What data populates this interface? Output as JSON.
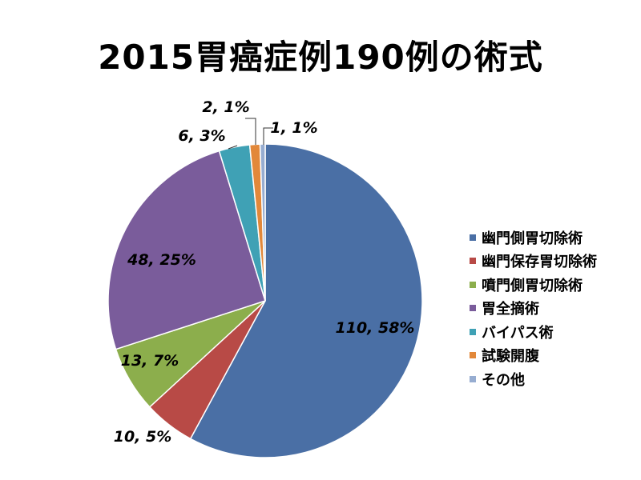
{
  "chart_data": {
    "type": "pie",
    "title": "2015胃癌症例190例の術式",
    "start_angle_deg": 0,
    "direction": "clockwise",
    "legend_position": "right",
    "slices": [
      {
        "name": "幽門側胃切除術",
        "value": 110,
        "label": "110, 58%",
        "color": "#4A6FA5"
      },
      {
        "name": "幽門保存胃切除術",
        "value": 10,
        "label": "10, 5%",
        "color": "#B84A46"
      },
      {
        "name": "噴門側胃切除術",
        "value": 13,
        "label": "13, 7%",
        "color": "#8CAE4C"
      },
      {
        "name": "胃全摘術",
        "value": 48,
        "label": "48, 25%",
        "color": "#7A5C9B"
      },
      {
        "name": "バイパス術",
        "value": 6,
        "label": "6, 3%",
        "color": "#3FA1B5"
      },
      {
        "name": "試験開腹",
        "value": 2,
        "label": "2, 1%",
        "color": "#E2883A"
      },
      {
        "name": "その他",
        "value": 1,
        "label": "1, 1%",
        "color": "#97ADD1"
      }
    ]
  }
}
